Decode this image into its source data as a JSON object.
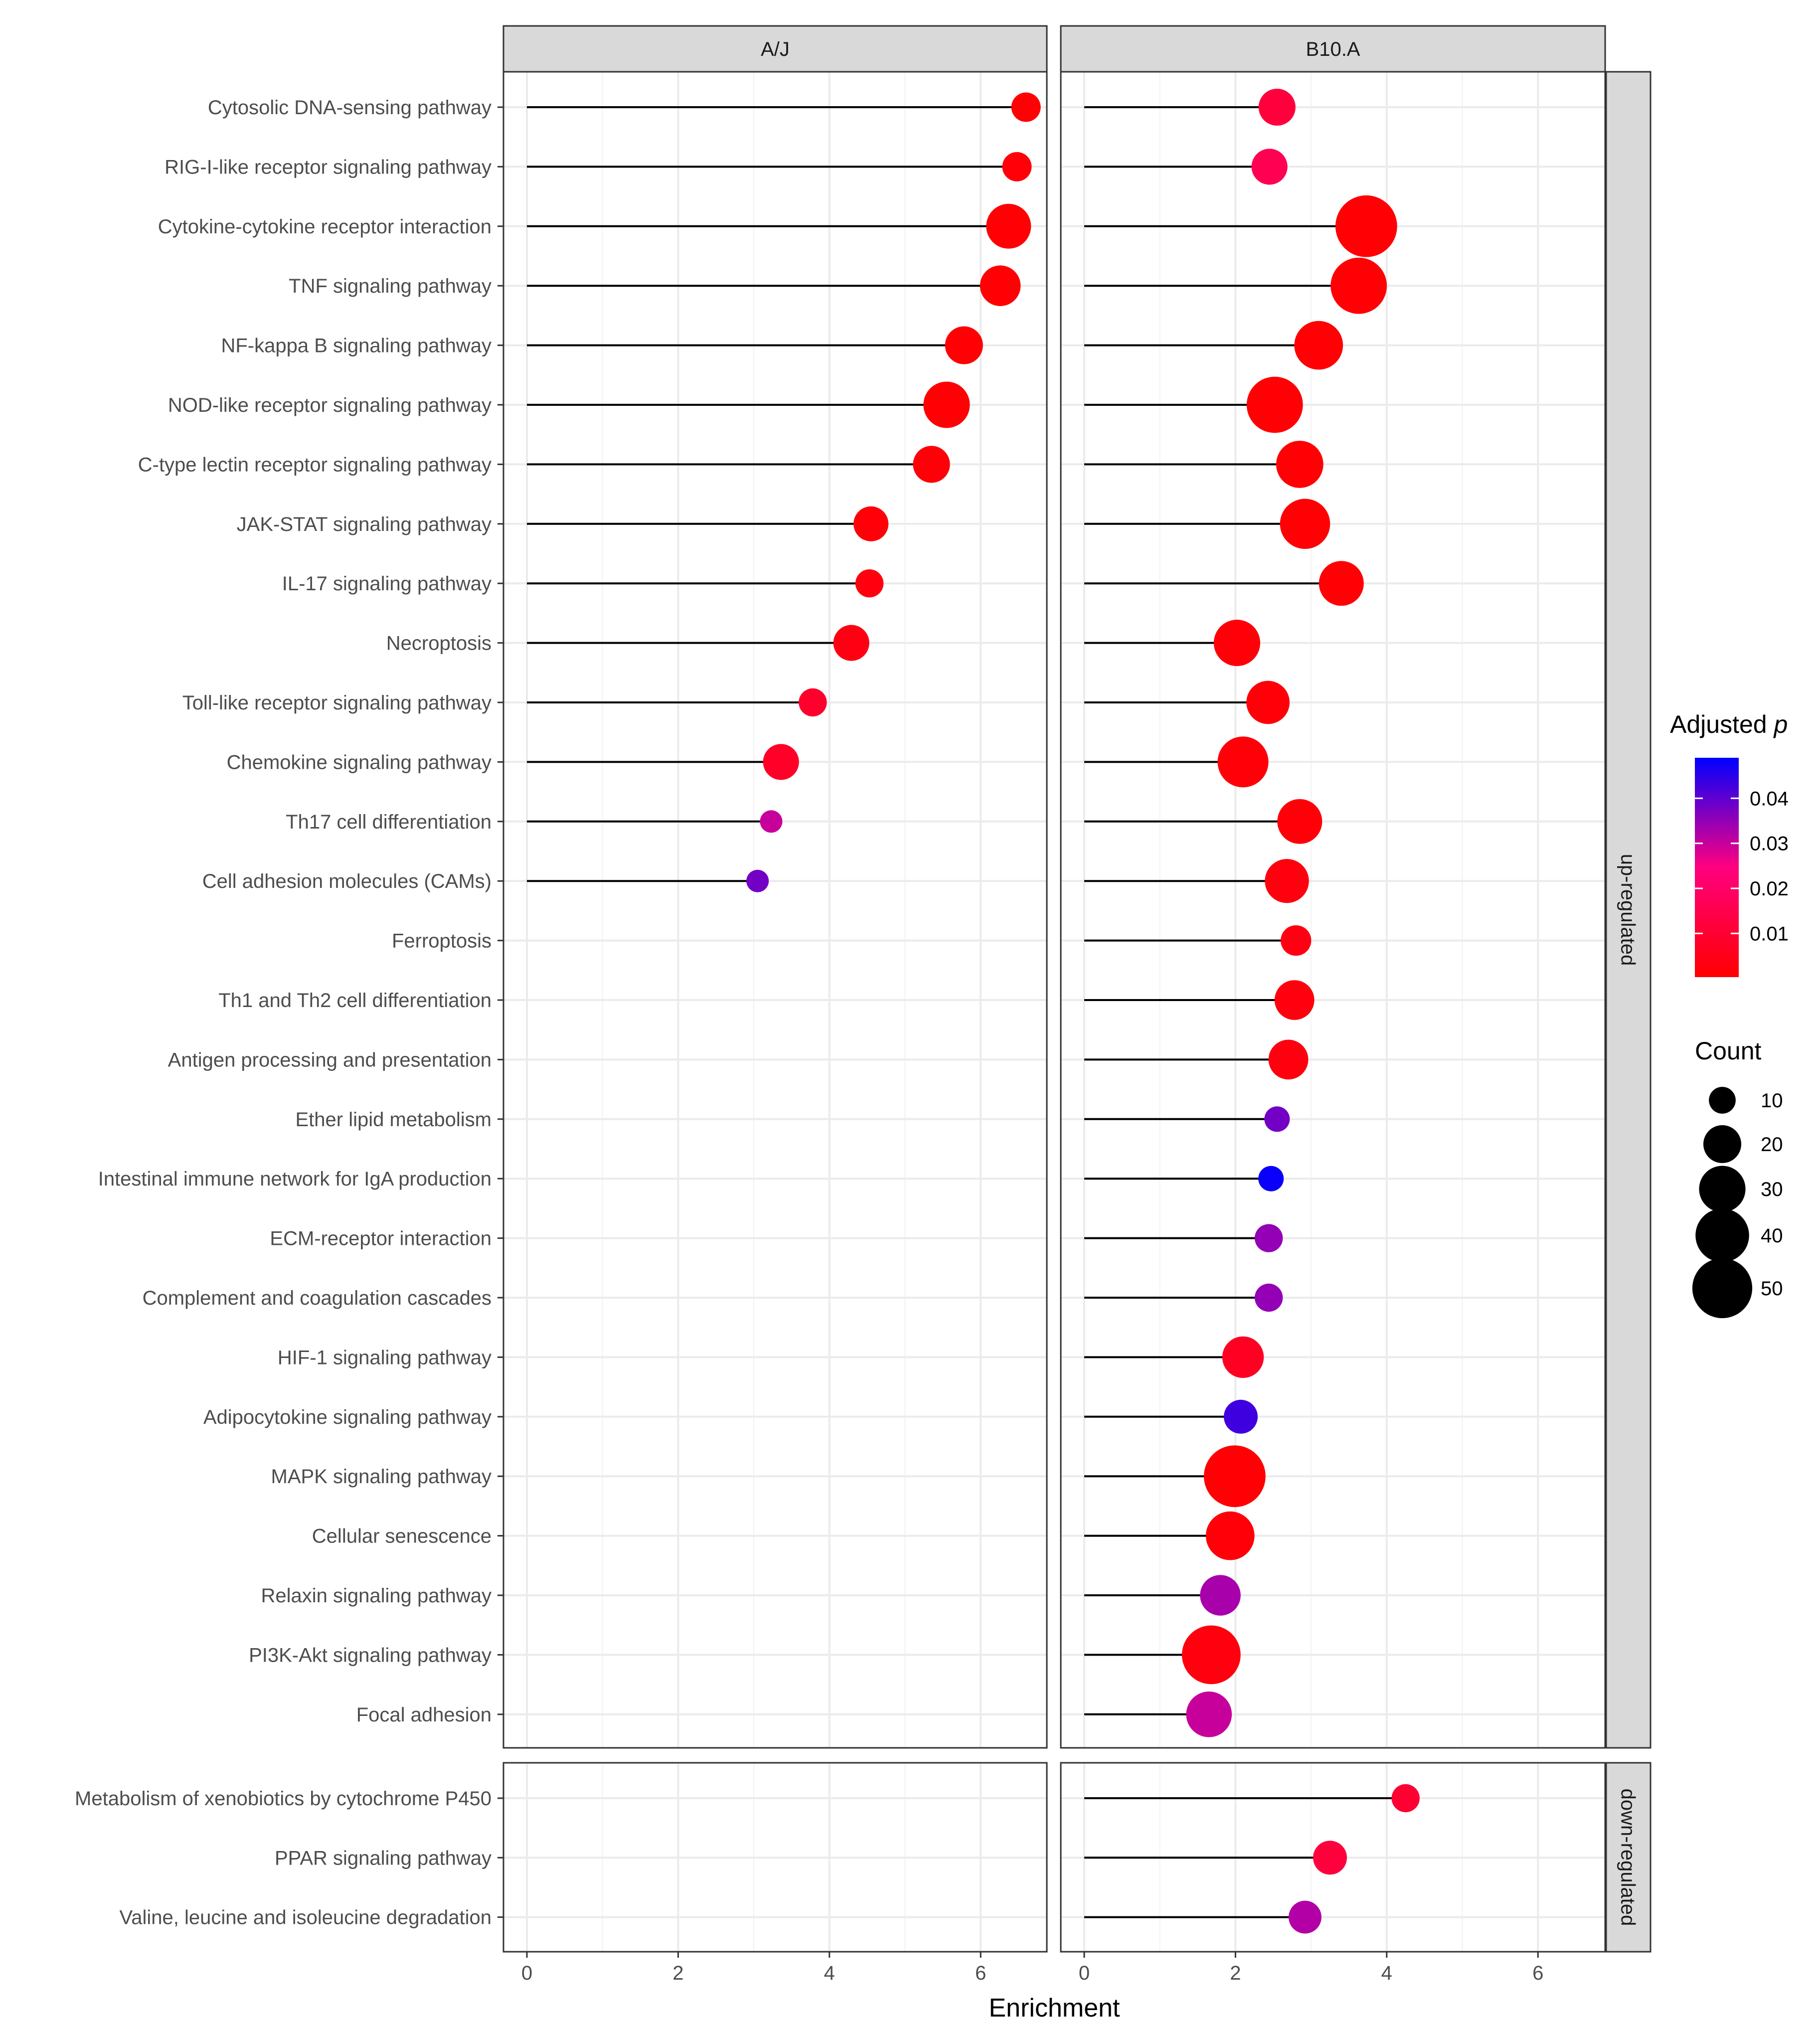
{
  "chart_data": {
    "type": "lollipop",
    "xlabel": "Enrichment",
    "xticks": [
      0,
      2,
      4,
      6
    ],
    "xlim": [
      -0.3,
      7.05
    ],
    "facets_col": [
      "A/J",
      "B10.A"
    ],
    "facets_row": [
      "up-regulated",
      "down-regulated"
    ],
    "categories_up": [
      "Cytosolic DNA-sensing pathway",
      "RIG-I-like receptor signaling pathway",
      "Cytokine-cytokine receptor interaction",
      "TNF signaling pathway",
      "NF-kappa B signaling pathway",
      "NOD-like receptor signaling pathway",
      "C-type lectin receptor signaling pathway",
      "JAK-STAT signaling pathway",
      "IL-17 signaling pathway",
      "Necroptosis",
      "Toll-like receptor signaling pathway",
      "Chemokine signaling pathway",
      "Th17 cell differentiation",
      "Cell adhesion molecules (CAMs)",
      "Ferroptosis",
      "Th1 and Th2 cell differentiation",
      "Antigen processing and presentation",
      "Ether lipid metabolism",
      "Intestinal immune network for IgA production",
      "ECM-receptor interaction",
      "Complement and coagulation cascades",
      "HIF-1 signaling pathway",
      "Adipocytokine signaling pathway",
      "MAPK signaling pathway",
      "Cellular senescence",
      "Relaxin signaling pathway",
      "PI3K-Akt signaling pathway",
      "Focal adhesion"
    ],
    "categories_down": [
      "Metabolism of xenobiotics by cytochrome P450",
      "PPAR signaling pathway",
      "Valine, leucine and isoleucine degradation"
    ],
    "series": [
      {
        "facet": "A/J",
        "group": "up-regulated",
        "points": [
          {
            "term": "Cytosolic DNA-sensing pathway",
            "enrichment": 6.6,
            "count": 12,
            "p_adj": 0.001
          },
          {
            "term": "RIG-I-like receptor signaling pathway",
            "enrichment": 6.48,
            "count": 12,
            "p_adj": 0.002
          },
          {
            "term": "Cytokine-cytokine receptor interaction",
            "enrichment": 6.37,
            "count": 28,
            "p_adj": 0.001
          },
          {
            "term": "TNF signaling pathway",
            "enrichment": 6.26,
            "count": 23,
            "p_adj": 0.001
          },
          {
            "term": "NF-kappa B signaling pathway",
            "enrichment": 5.78,
            "count": 20,
            "p_adj": 0.001
          },
          {
            "term": "NOD-like receptor signaling pathway",
            "enrichment": 5.55,
            "count": 30,
            "p_adj": 0.001
          },
          {
            "term": "C-type lectin receptor signaling pathway",
            "enrichment": 5.35,
            "count": 19,
            "p_adj": 0.002
          },
          {
            "term": "JAK-STAT signaling pathway",
            "enrichment": 4.55,
            "count": 17,
            "p_adj": 0.002
          },
          {
            "term": "IL-17 signaling pathway",
            "enrichment": 4.53,
            "count": 11,
            "p_adj": 0.003
          },
          {
            "term": "Necroptosis",
            "enrichment": 4.29,
            "count": 18,
            "p_adj": 0.004
          },
          {
            "term": "Toll-like receptor signaling pathway",
            "enrichment": 3.78,
            "count": 11,
            "p_adj": 0.009
          },
          {
            "term": "Chemokine signaling pathway",
            "enrichment": 3.36,
            "count": 18,
            "p_adj": 0.008
          },
          {
            "term": "Th17 cell differentiation",
            "enrichment": 3.23,
            "count": 7,
            "p_adj": 0.03
          },
          {
            "term": "Cell adhesion molecules (CAMs)",
            "enrichment": 3.05,
            "count": 7,
            "p_adj": 0.038
          }
        ]
      },
      {
        "facet": "B10.A",
        "group": "up-regulated",
        "points": [
          {
            "term": "Cytosolic DNA-sensing pathway",
            "enrichment": 2.55,
            "count": 19,
            "p_adj": 0.012
          },
          {
            "term": "RIG-I-like receptor signaling pathway",
            "enrichment": 2.45,
            "count": 18,
            "p_adj": 0.016
          },
          {
            "term": "Cytokine-cytokine receptor interaction",
            "enrichment": 3.73,
            "count": 53,
            "p_adj": 0.001
          },
          {
            "term": "TNF signaling pathway",
            "enrichment": 3.63,
            "count": 44,
            "p_adj": 0.001
          },
          {
            "term": "NF-kappa B signaling pathway",
            "enrichment": 3.1,
            "count": 33,
            "p_adj": 0.001
          },
          {
            "term": "NOD-like receptor signaling pathway",
            "enrichment": 2.52,
            "count": 44,
            "p_adj": 0.001
          },
          {
            "term": "C-type lectin receptor signaling pathway",
            "enrichment": 2.85,
            "count": 31,
            "p_adj": 0.001
          },
          {
            "term": "JAK-STAT signaling pathway",
            "enrichment": 2.92,
            "count": 35,
            "p_adj": 0.001
          },
          {
            "term": "IL-17 signaling pathway",
            "enrichment": 3.4,
            "count": 28,
            "p_adj": 0.001
          },
          {
            "term": "Necroptosis",
            "enrichment": 2.02,
            "count": 30,
            "p_adj": 0.002
          },
          {
            "term": "Toll-like receptor signaling pathway",
            "enrichment": 2.43,
            "count": 26,
            "p_adj": 0.002
          },
          {
            "term": "Chemokine signaling pathway",
            "enrichment": 2.1,
            "count": 36,
            "p_adj": 0.002
          },
          {
            "term": "Th17 cell differentiation",
            "enrichment": 2.85,
            "count": 28,
            "p_adj": 0.002
          },
          {
            "term": "Cell adhesion molecules (CAMs)",
            "enrichment": 2.68,
            "count": 27,
            "p_adj": 0.003
          },
          {
            "term": "Ferroptosis",
            "enrichment": 2.8,
            "count": 13,
            "p_adj": 0.004
          },
          {
            "term": "Th1 and Th2 cell differentiation",
            "enrichment": 2.78,
            "count": 22,
            "p_adj": 0.003
          },
          {
            "term": "Antigen processing and presentation",
            "enrichment": 2.7,
            "count": 22,
            "p_adj": 0.003
          },
          {
            "term": "Ether lipid metabolism",
            "enrichment": 2.55,
            "count": 9,
            "p_adj": 0.038
          },
          {
            "term": "Intestinal immune network for IgA production",
            "enrichment": 2.47,
            "count": 9,
            "p_adj": 0.048
          },
          {
            "term": "ECM-receptor interaction",
            "enrichment": 2.44,
            "count": 11,
            "p_adj": 0.035
          },
          {
            "term": "Complement and coagulation cascades",
            "enrichment": 2.44,
            "count": 11,
            "p_adj": 0.035
          },
          {
            "term": "HIF-1 signaling pathway",
            "enrichment": 2.1,
            "count": 24,
            "p_adj": 0.007
          },
          {
            "term": "Adipocytokine signaling pathway",
            "enrichment": 2.07,
            "count": 16,
            "p_adj": 0.043
          },
          {
            "term": "MAPK signaling pathway",
            "enrichment": 1.99,
            "count": 53,
            "p_adj": 0.001
          },
          {
            "term": "Cellular senescence",
            "enrichment": 1.93,
            "count": 33,
            "p_adj": 0.002
          },
          {
            "term": "Relaxin signaling pathway",
            "enrichment": 1.8,
            "count": 23,
            "p_adj": 0.033
          },
          {
            "term": "PI3K-Akt signaling pathway",
            "enrichment": 1.68,
            "count": 48,
            "p_adj": 0.003
          },
          {
            "term": "Focal adhesion",
            "enrichment": 1.65,
            "count": 29,
            "p_adj": 0.03
          }
        ]
      },
      {
        "facet": "B10.A",
        "group": "down-regulated",
        "points": [
          {
            "term": "Metabolism of xenobiotics by cytochrome P450",
            "enrichment": 4.25,
            "count": 11,
            "p_adj": 0.01
          },
          {
            "term": "PPAR signaling pathway",
            "enrichment": 3.25,
            "count": 16,
            "p_adj": 0.012
          },
          {
            "term": "Valine, leucine and isoleucine degradation",
            "enrichment": 2.92,
            "count": 15,
            "p_adj": 0.032
          }
        ]
      }
    ],
    "legend_color": {
      "title": "Adjusted",
      "title_italic": "p",
      "ticks": [
        "0.01",
        "0.02",
        "0.03",
        "0.04"
      ],
      "tick_values": [
        0.01,
        0.02,
        0.03,
        0.04
      ],
      "range": [
        0.0003,
        0.049
      ],
      "low_color": "#FF0000",
      "high_color": "#0000FF"
    },
    "legend_size": {
      "title": "Count",
      "values": [
        10,
        20,
        30,
        40,
        50
      ],
      "labels": [
        "10",
        "20",
        "30",
        "40",
        "50"
      ]
    }
  }
}
